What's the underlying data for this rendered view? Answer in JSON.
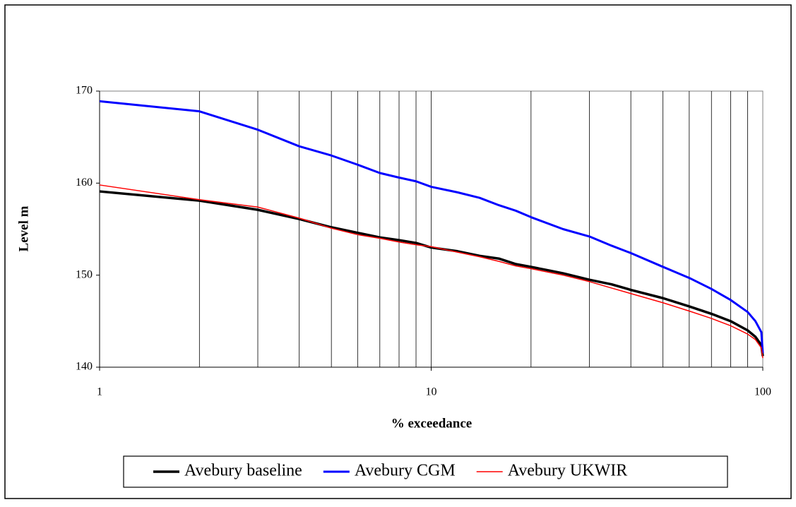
{
  "chart_data": {
    "type": "line",
    "x_label": "% exceedance",
    "y_label": "Level m",
    "x": [
      1,
      2,
      3,
      4,
      5,
      6,
      7,
      8,
      9,
      10,
      12,
      14,
      16,
      18,
      20,
      25,
      30,
      35,
      40,
      50,
      60,
      70,
      80,
      90,
      95,
      99,
      100
    ],
    "series": [
      {
        "name": "Avebury baseline",
        "color": "#000000",
        "values": [
          159.1,
          158.1,
          157.1,
          156.1,
          155.2,
          154.6,
          154.1,
          153.8,
          153.5,
          153.0,
          152.6,
          152.1,
          151.8,
          151.2,
          150.9,
          150.2,
          149.5,
          149.0,
          148.4,
          147.5,
          146.6,
          145.8,
          145.0,
          144.0,
          143.3,
          142.4,
          141.2
        ]
      },
      {
        "name": "Avebury CGM",
        "color": "#0000ff",
        "values": [
          168.9,
          167.8,
          165.8,
          164.0,
          163.0,
          162.0,
          161.1,
          160.6,
          160.2,
          159.6,
          159.0,
          158.4,
          157.6,
          157.0,
          156.3,
          155.0,
          154.2,
          153.2,
          152.4,
          150.9,
          149.7,
          148.5,
          147.3,
          146.0,
          145.0,
          143.8,
          141.5
        ]
      },
      {
        "name": "Avebury UKWIR",
        "color": "#ff0000",
        "values": [
          159.8,
          158.2,
          157.4,
          156.2,
          155.1,
          154.4,
          154.0,
          153.6,
          153.3,
          153.1,
          152.5,
          152.0,
          151.5,
          151.0,
          150.7,
          150.0,
          149.3,
          148.6,
          148.0,
          147.0,
          146.1,
          145.3,
          144.5,
          143.6,
          143.0,
          142.1,
          141.0
        ]
      }
    ],
    "xscale": "log",
    "xlim": [
      1,
      100
    ],
    "xticks": [
      1,
      10,
      100
    ],
    "x_grid": [
      2,
      3,
      4,
      5,
      6,
      7,
      8,
      9,
      10,
      20,
      30,
      40,
      50,
      60,
      70,
      80,
      90
    ],
    "ylim": [
      140,
      170
    ],
    "yticks": [
      140,
      150,
      160,
      170
    ],
    "legend": "bottom"
  }
}
